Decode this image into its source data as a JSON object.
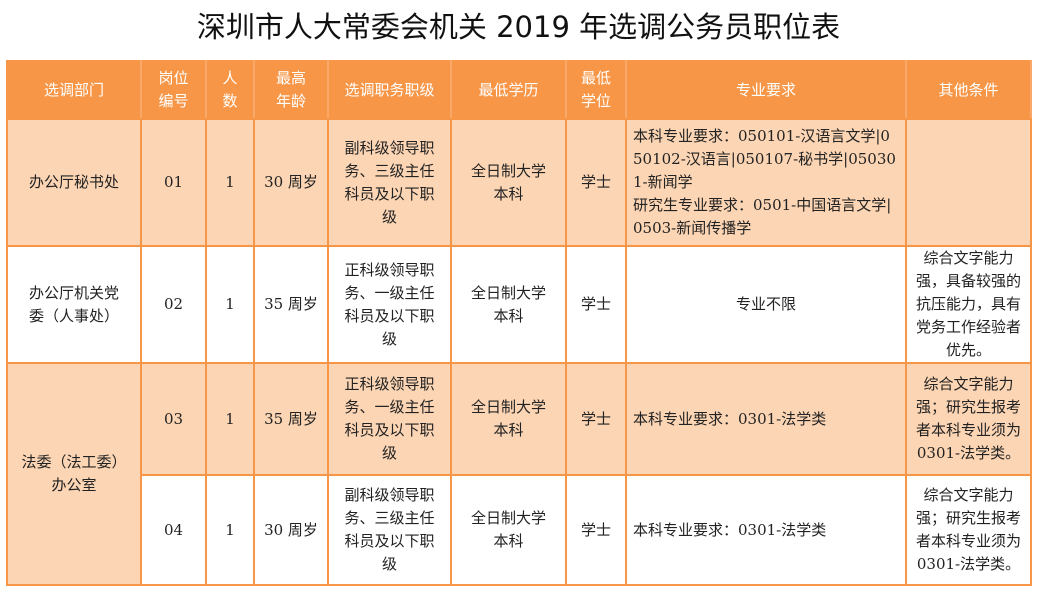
{
  "title": "深圳市人大常委会机关 2019 年选调公务员职位表",
  "colors": {
    "header": "#F79646",
    "band": "#FCD5B4",
    "border": "#F79646"
  },
  "headers": [
    "选调部门",
    "岗位编号",
    "人数",
    "最高年龄",
    "选调职务职级",
    "最低学历",
    "最低学位",
    "专业要求",
    "其他条件"
  ],
  "rows": [
    {
      "dept": "办公厅秘书处",
      "code": "01",
      "count": "1",
      "age": "30 周岁",
      "rank": "副科级领导职务、三级主任科员及以下职级",
      "edu": "全日制大学本科",
      "degree": "学士",
      "major": "本科专业要求：050101-汉语言文学|050102-汉语言|050107-秘书学|050301-新闻学\n研究生专业要求：0501-中国语言文学|0503-新闻传播学",
      "other": ""
    },
    {
      "dept": "办公厅机关党委（人事处）",
      "code": "02",
      "count": "1",
      "age": "35 周岁",
      "rank": "正科级领导职务、一级主任科员及以下职级",
      "edu": "全日制大学本科",
      "degree": "学士",
      "major": "专业不限",
      "other": "综合文字能力强，具备较强的抗压能力，具有党务工作经验者优先。"
    },
    {
      "dept": "法委（法工委）办公室",
      "code": "03",
      "count": "1",
      "age": "35 周岁",
      "rank": "正科级领导职务、一级主任科员及以下职级",
      "edu": "全日制大学本科",
      "degree": "学士",
      "major": "本科专业要求：0301-法学类",
      "other": "综合文字能力强；研究生报考者本科专业须为 0301-法学类。"
    },
    {
      "code": "04",
      "count": "1",
      "age": "30 周岁",
      "rank": "副科级领导职务、三级主任科员及以下职级",
      "edu": "全日制大学本科",
      "degree": "学士",
      "major": "本科专业要求：0301-法学类",
      "other": "综合文字能力强；研究生报考者本科专业须为 0301-法学类。"
    }
  ]
}
